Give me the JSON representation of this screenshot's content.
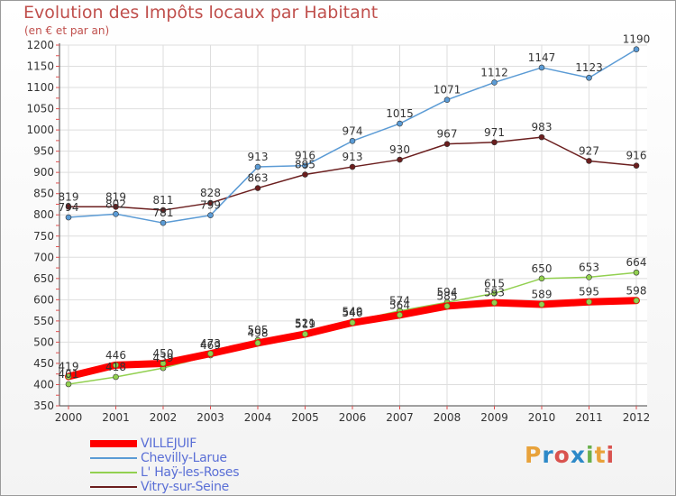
{
  "title": "Evolution des Impôts locaux par Habitant",
  "subtitle": "(en € et par an)",
  "logo_text": "Proxiti",
  "chart_data": {
    "type": "line",
    "title": "Evolution des Impôts locaux par Habitant",
    "subtitle": "(en € et par an)",
    "x": [
      "2000",
      "2001",
      "2002",
      "2003",
      "2004",
      "2005",
      "2006",
      "2007",
      "2008",
      "2009",
      "2010",
      "2011",
      "2012"
    ],
    "ylim": [
      350,
      1200
    ],
    "yticks": [
      350,
      400,
      450,
      500,
      550,
      600,
      650,
      700,
      750,
      800,
      850,
      900,
      950,
      1000,
      1050,
      1100,
      1150,
      1200
    ],
    "grid": true,
    "legend_position": "bottom-left",
    "series": [
      {
        "name": "VILLEJUIF",
        "color": "#ff0000",
        "values": [
          419,
          446,
          450,
          473,
          498,
          519,
          546,
          564,
          585,
          593,
          589,
          595,
          598
        ]
      },
      {
        "name": "Chevilly-Larue",
        "color": "#5b9bd5",
        "values": [
          794,
          802,
          781,
          799,
          913,
          916,
          974,
          1015,
          1071,
          1112,
          1147,
          1123,
          1190
        ]
      },
      {
        "name": "L' Haÿ-les-Roses",
        "color": "#92d050",
        "values": [
          401,
          418,
          439,
          469,
          505,
          521,
          549,
          574,
          594,
          615,
          650,
          653,
          664
        ]
      },
      {
        "name": "Vitry-sur-Seine",
        "color": "#6b1e1e",
        "values": [
          819,
          819,
          811,
          828,
          863,
          895,
          913,
          930,
          967,
          971,
          983,
          927,
          916
        ]
      }
    ]
  }
}
